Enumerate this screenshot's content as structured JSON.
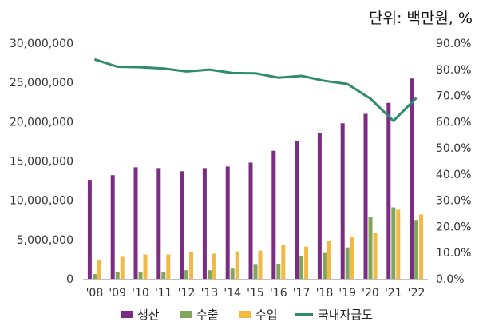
{
  "chart_data": {
    "type": "bar",
    "unit_label": "단위: 백만원, %",
    "categories": [
      "'08",
      "'09",
      "'10",
      "'11",
      "'12",
      "'13",
      "'14",
      "'15",
      "'16",
      "'17",
      "'18",
      "'19",
      "'20",
      "'21",
      "'22"
    ],
    "series": [
      {
        "name": "생산",
        "type": "bar",
        "axis": "left",
        "color": "#7b2c83",
        "values": [
          12600000,
          13200000,
          14200000,
          14100000,
          13700000,
          14100000,
          14300000,
          14800000,
          16300000,
          17600000,
          18600000,
          19800000,
          21000000,
          22400000,
          25500000
        ]
      },
      {
        "name": "수출",
        "type": "bar",
        "axis": "left",
        "color": "#7fa65a",
        "values": [
          600000,
          900000,
          900000,
          900000,
          1100000,
          1100000,
          1300000,
          1800000,
          1900000,
          2900000,
          3300000,
          4000000,
          7900000,
          9100000,
          7500000
        ]
      },
      {
        "name": "수입",
        "type": "bar",
        "axis": "left",
        "color": "#f2b944",
        "values": [
          2400000,
          2800000,
          3100000,
          3100000,
          3400000,
          3200000,
          3500000,
          3600000,
          4300000,
          4100000,
          4800000,
          5400000,
          5900000,
          8800000,
          8200000
        ]
      },
      {
        "name": "국내자급도",
        "type": "line",
        "axis": "right",
        "color": "#2e8b6e",
        "values": [
          83.8,
          81.0,
          80.8,
          80.3,
          79.2,
          79.9,
          78.6,
          78.5,
          76.8,
          77.5,
          75.6,
          74.4,
          68.8,
          60.3,
          69.1
        ]
      }
    ],
    "y_left": {
      "min": 0,
      "max": 30000000,
      "step": 5000000,
      "tick_labels": [
        "0",
        "5,000,000",
        "10,000,000",
        "15,000,000",
        "20,000,000",
        "25,000,000",
        "30,000,000"
      ]
    },
    "y_right": {
      "min": 0,
      "max": 90,
      "step": 10,
      "tick_labels": [
        "0.0%",
        "10.0%",
        "20.0%",
        "30.0%",
        "40.0%",
        "50.0%",
        "60.0%",
        "70.0%",
        "80.0%",
        "90.0%"
      ]
    },
    "grid": false,
    "legend_position": "bottom"
  }
}
